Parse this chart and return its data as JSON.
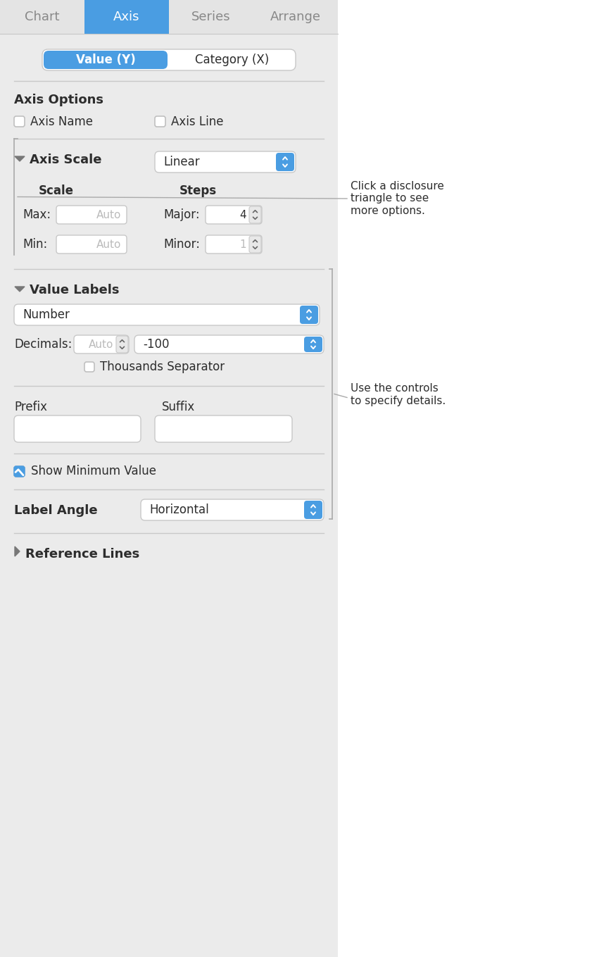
{
  "bg_color": "#ebebeb",
  "white": "#ffffff",
  "blue_active": "#4a9de2",
  "tab_text_active": "#ffffff",
  "tab_text_inactive": "#888888",
  "text_dark": "#2d2d2d",
  "text_medium": "#666666",
  "text_light": "#bbbbbb",
  "border_color": "#c8c8c8",
  "checkbox_border": "#c0c0c0",
  "divider_color": "#c8c8c8",
  "annotation_line_color": "#999999",
  "tabs": [
    "Chart",
    "Axis",
    "Series",
    "Arrange"
  ],
  "active_tab": 1,
  "segment_buttons": [
    "Value (Y)",
    "Category (X)"
  ],
  "section1_title": "Axis Options",
  "checkbox1_label": "Axis Name",
  "checkbox2_label": "Axis Line",
  "section2_title": "Axis Scale",
  "dropdown_linear": "Linear",
  "scale_label": "Scale",
  "steps_label": "Steps",
  "max_label": "Max:",
  "min_label": "Min:",
  "major_label": "Major:",
  "minor_label": "Minor:",
  "auto_text": "Auto",
  "major_value": "4",
  "minor_value": "1",
  "section3_title": "Value Labels",
  "dropdown_number": "Number",
  "decimals_label": "Decimals:",
  "decimals_value": "Auto",
  "dropdown_neg100": "-100",
  "thousands_label": "Thousands Separator",
  "prefix_label": "Prefix",
  "suffix_label": "Suffix",
  "show_min_label": "Show Minimum Value",
  "label_angle_title": "Label Angle",
  "dropdown_horizontal": "Horizontal",
  "section4_title": "Reference Lines",
  "annotation1": "Click a disclosure\ntriangle to see\nmore options.",
  "annotation2": "Use the controls\nto specify details.",
  "figsize": [
    8.51,
    13.59
  ],
  "dpi": 100
}
